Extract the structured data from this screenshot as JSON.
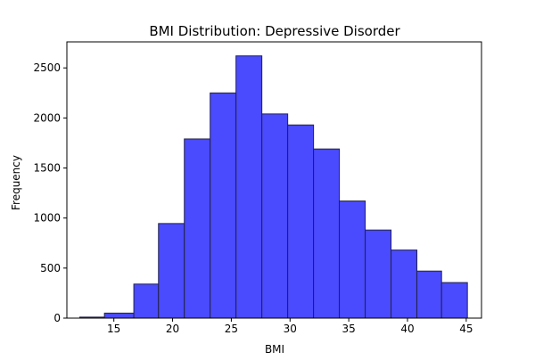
{
  "chart_data": {
    "type": "bar",
    "title": "BMI Distribution: Depressive Disorder",
    "xlabel": "BMI",
    "ylabel": "Frequency",
    "xlim": [
      11.0,
      46.3
    ],
    "ylim": [
      0,
      2760
    ],
    "xticks": [
      15,
      20,
      25,
      30,
      35,
      40,
      45
    ],
    "yticks": [
      0,
      500,
      1000,
      1500,
      2000,
      2500
    ],
    "grid": false,
    "bar_color": "#4a4aff",
    "edge_color": "#22224a",
    "bins": [
      {
        "x0": 12.1,
        "x1": 14.2,
        "count": 10
      },
      {
        "x0": 14.2,
        "x1": 16.7,
        "count": 50
      },
      {
        "x0": 16.7,
        "x1": 18.8,
        "count": 340
      },
      {
        "x0": 18.8,
        "x1": 21.0,
        "count": 945
      },
      {
        "x0": 21.0,
        "x1": 23.2,
        "count": 1790
      },
      {
        "x0": 23.2,
        "x1": 25.4,
        "count": 2250
      },
      {
        "x0": 25.4,
        "x1": 27.6,
        "count": 2620
      },
      {
        "x0": 27.6,
        "x1": 29.8,
        "count": 2040
      },
      {
        "x0": 29.8,
        "x1": 32.0,
        "count": 1930
      },
      {
        "x0": 32.0,
        "x1": 34.2,
        "count": 1690
      },
      {
        "x0": 34.2,
        "x1": 36.4,
        "count": 1170
      },
      {
        "x0": 36.4,
        "x1": 38.6,
        "count": 880
      },
      {
        "x0": 38.6,
        "x1": 40.8,
        "count": 680
      },
      {
        "x0": 40.8,
        "x1": 42.9,
        "count": 470
      },
      {
        "x0": 42.9,
        "x1": 45.1,
        "count": 355
      }
    ]
  }
}
